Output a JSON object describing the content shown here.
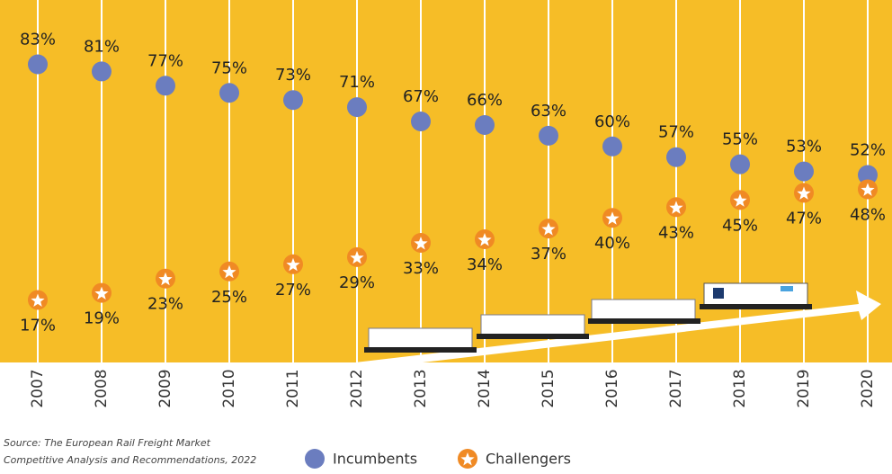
{
  "chart_data": {
    "type": "dot",
    "categories": [
      "2007",
      "2008",
      "2009",
      "2010",
      "2011",
      "2012",
      "2013",
      "2014",
      "2015",
      "2016",
      "2017",
      "2018",
      "2019",
      "2020"
    ],
    "series": [
      {
        "name": "Incumbents",
        "color": "#6b7dbf",
        "values": [
          83,
          81,
          77,
          75,
          73,
          71,
          67,
          66,
          63,
          60,
          57,
          55,
          53,
          52
        ],
        "value_labels": [
          "83%",
          "81%",
          "77%",
          "75%",
          "73%",
          "71%",
          "67%",
          "66%",
          "63%",
          "60%",
          "57%",
          "55%",
          "53%",
          "52%"
        ]
      },
      {
        "name": "Challengers",
        "color": "#f08a24",
        "values": [
          17,
          19,
          23,
          25,
          27,
          29,
          33,
          34,
          37,
          40,
          43,
          45,
          47,
          48
        ],
        "value_labels": [
          "17%",
          "19%",
          "23%",
          "25%",
          "27%",
          "29%",
          "33%",
          "34%",
          "37%",
          "40%",
          "43%",
          "45%",
          "47%",
          "48%"
        ]
      }
    ],
    "ylim": [
      0,
      100
    ],
    "source": [
      "Source: The European Rail Freight Market",
      "Competitive Analysis and Recommendations, 2022"
    ]
  }
}
